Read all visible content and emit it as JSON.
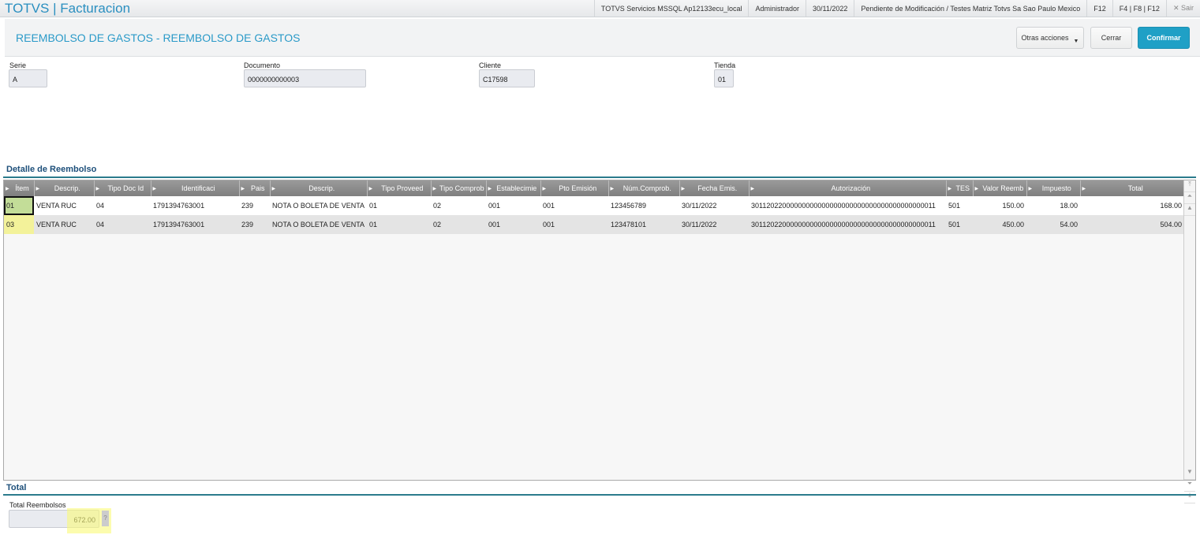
{
  "app": {
    "title": "TOTVS | Facturacion"
  },
  "topbar": {
    "server": "TOTVS Servicios MSSQL Ap12133ecu_local",
    "user": "Administrador",
    "date": "30/11/2022",
    "company": "Pendiente de Modificación / Testes Matriz Totvs Sa Sao Paulo Mexico",
    "f12": "F12",
    "keys": "F4 | F8 | F12",
    "exit": "✕ Sair"
  },
  "header": {
    "title": "REEMBOLSO DE GASTOS - REEMBOLSO DE GASTOS",
    "other_actions": "Otras acciones",
    "close": "Cerrar",
    "confirm": "Confirmar"
  },
  "fields": {
    "serie_label": "Serie",
    "serie": "A",
    "doc_label": "Documento",
    "doc": "0000000000003",
    "client_label": "Cliente",
    "client": "C17598",
    "store_label": "Tienda",
    "store": "01"
  },
  "detail": {
    "title": "Detalle de Reembolso",
    "columns": [
      "Ítem",
      "Descrip.",
      "Tipo Doc Id",
      "Identificaci",
      "Pais",
      "Descrip.",
      "Tipo Proveed",
      "Tipo Comprob",
      "Establecimie",
      "Pto Emisión",
      "Núm.Comprob.",
      "Fecha Emis.",
      "Autorización",
      "TES",
      "Valor Reemb",
      "Impuesto",
      "Total"
    ],
    "rows": [
      [
        "01",
        "VENTA RUC",
        "04",
        "1791394763001",
        "239",
        "NOTA O BOLETA DE VENTA",
        "01",
        "02",
        "001",
        "001",
        "123456789",
        "30/11/2022",
        "30112022000000000000000000000000000000000000011",
        "501",
        "150.00",
        "18.00",
        "168.00"
      ],
      [
        "03",
        "VENTA RUC",
        "04",
        "1791394763001",
        "239",
        "NOTA O BOLETA DE VENTA",
        "01",
        "02",
        "001",
        "001",
        "123478101",
        "30/11/2022",
        "30112022000000000000000000000000000000000000011",
        "501",
        "450.00",
        "54.00",
        "504.00"
      ]
    ]
  },
  "total": {
    "title": "Total",
    "label": "Total Reembolsos",
    "value": "672.00",
    "help": "?"
  }
}
